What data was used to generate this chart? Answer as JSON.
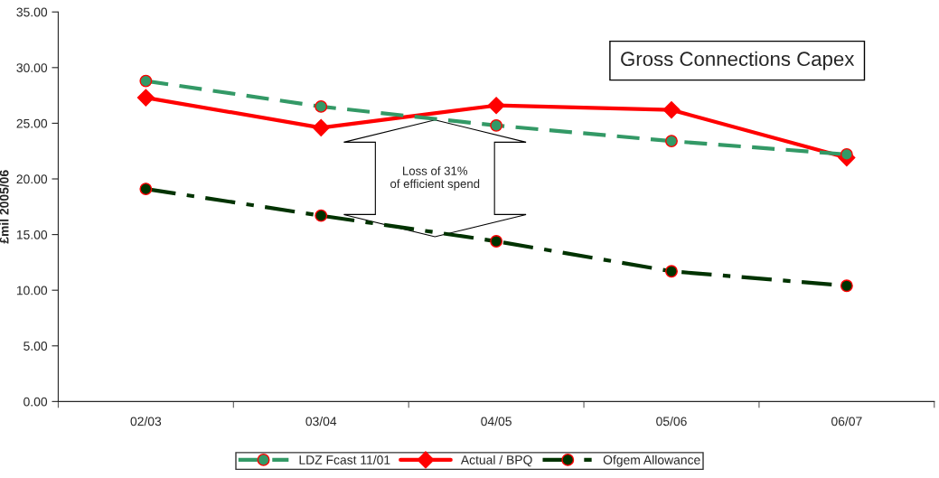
{
  "chart_data": {
    "type": "line",
    "title": "Gross Connections Capex",
    "ylabel": "£mil 2005/06",
    "categories": [
      "02/03",
      "03/04",
      "04/05",
      "05/06",
      "06/07"
    ],
    "series": [
      {
        "name": "LDZ Fcast 11/01",
        "color": "#339966",
        "values": [
          28.8,
          26.5,
          24.8,
          23.4,
          22.2
        ],
        "marker": "circle",
        "line_style": "dashed"
      },
      {
        "name": "Actual / BPQ",
        "color": "#ff0000",
        "values": [
          27.3,
          24.6,
          26.6,
          26.2,
          21.9
        ],
        "marker": "diamond",
        "line_style": "solid"
      },
      {
        "name": "Ofgem Allowance",
        "color": "#003300",
        "values": [
          19.1,
          16.7,
          14.4,
          11.7,
          10.4
        ],
        "marker": "circle",
        "line_style": "dashdot"
      }
    ],
    "ylim": [
      0,
      35
    ],
    "yticks": [
      {
        "value": 0,
        "label": "0.00"
      },
      {
        "value": 5,
        "label": "5.00"
      },
      {
        "value": 10,
        "label": "10.00"
      },
      {
        "value": 15,
        "label": "15.00"
      },
      {
        "value": 20,
        "label": "20.00"
      },
      {
        "value": 25,
        "label": "25.00"
      },
      {
        "value": 30,
        "label": "30.00"
      },
      {
        "value": 35,
        "label": "35.00"
      }
    ],
    "annotations": [
      "Loss of 31%\nof efficient spend"
    ],
    "grid": false,
    "legend": "bottom"
  }
}
